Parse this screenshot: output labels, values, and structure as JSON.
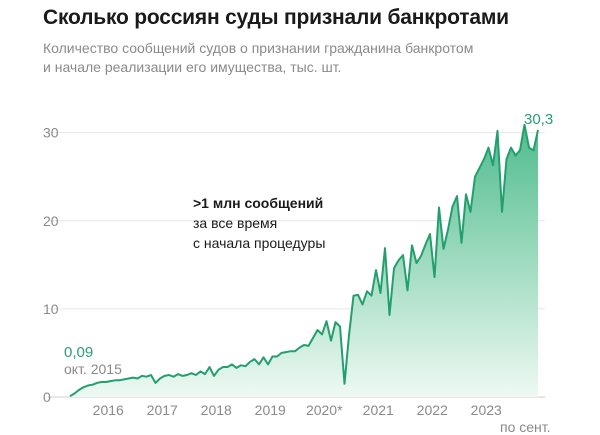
{
  "title": "Сколько россиян суды признали банкротами",
  "subtitle_line1": "Количество сообщений судов о признании гражданина банкротом",
  "subtitle_line2": "и начале реализации его имущества, тыс. шт.",
  "colors": {
    "line": "#239f6e",
    "fill_top": "#4fbc8c",
    "fill_bottom": "#eef9f3",
    "accent_text": "#2a9d74",
    "grid": "#e6e6e6"
  },
  "callout": {
    "line1": ">1 млн сообщений",
    "line2": "за все время",
    "line3": "с начала процедуры"
  },
  "start_value_label": "0,09",
  "start_date_label": "окт. 2015",
  "end_value_label": "30,3",
  "end_date_label": "по сент.",
  "chart_data": {
    "type": "area",
    "title": "Сколько россиян суды признали банкротами",
    "subtitle": "Количество сообщений судов о признании гражданина банкротом и начале реализации его имущества, тыс. шт.",
    "x_start": "2015-10",
    "x_end": "2023-09",
    "x_ticks": [
      "2016",
      "2017",
      "2018",
      "2019",
      "2020*",
      "2021",
      "2022",
      "2023"
    ],
    "y_ticks": [
      0,
      10,
      20,
      30
    ],
    "ylim": [
      0,
      32
    ],
    "grid": true,
    "values": [
      0.09,
      0.4,
      0.8,
      1.1,
      1.3,
      1.4,
      1.6,
      1.7,
      1.7,
      1.8,
      1.9,
      1.9,
      2.0,
      2.1,
      2.2,
      2.1,
      2.4,
      2.3,
      2.5,
      1.6,
      2.1,
      2.4,
      2.5,
      2.3,
      2.6,
      2.4,
      2.5,
      2.7,
      2.5,
      2.9,
      2.6,
      3.4,
      2.4,
      3.1,
      3.4,
      3.4,
      3.7,
      3.3,
      3.6,
      3.5,
      4.0,
      4.3,
      3.7,
      4.5,
      3.7,
      4.6,
      4.6,
      5.0,
      5.1,
      5.2,
      5.2,
      5.6,
      5.9,
      5.8,
      6.7,
      7.6,
      7.1,
      8.6,
      6.4,
      8.5,
      8.0,
      1.5,
      7.0,
      11.5,
      11.6,
      10.5,
      12.0,
      11.5,
      14.4,
      11.8,
      16.9,
      9.3,
      14.6,
      15.5,
      16.1,
      12.1,
      17.2,
      15.2,
      16.0,
      17.3,
      18.5,
      13.6,
      21.5,
      16.8,
      19.0,
      21.6,
      22.8,
      17.5,
      23.0,
      21.0,
      25.0,
      26.0,
      27.0,
      28.3,
      26.3,
      30.2,
      21.0,
      27.0,
      28.3,
      27.4,
      28.0,
      30.9,
      28.3,
      28.0,
      30.3
    ]
  }
}
